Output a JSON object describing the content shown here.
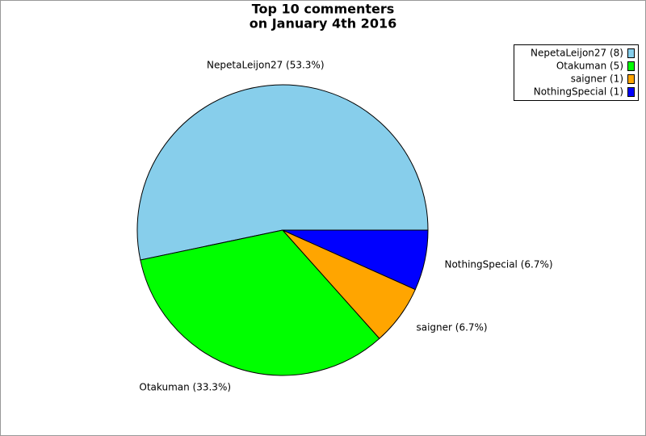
{
  "chart_data": {
    "type": "pie",
    "title": [
      "Top 10 commenters",
      "on January 4th 2016"
    ],
    "categories": [
      "NepetaLeijon27",
      "Otakuman",
      "saigner",
      "NothingSpecial"
    ],
    "values": [
      53.3,
      33.3,
      6.7,
      6.7
    ],
    "value_labels": [
      "NepetaLeijon27 (53.3%)",
      "Otakuman (33.3%)",
      "saigner (6.7%)",
      "NothingSpecial (6.7%)"
    ],
    "legend": [
      "NepetaLeijon27 (8)",
      "Otakuman (5)",
      "saigner (1)",
      "NothingSpecial (1)"
    ],
    "colors": [
      "#87ceeb",
      "#00ff00",
      "#ffa500",
      "#0000ff"
    ],
    "legend_position": "top-right"
  }
}
